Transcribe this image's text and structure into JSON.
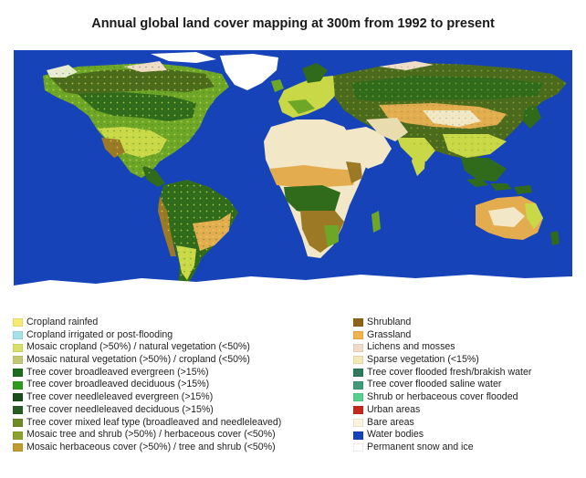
{
  "title": "Annual global land cover mapping at 300m from 1992 to present",
  "map": {
    "colors": {
      "ocean": "#1743b8",
      "ice": "#ffffff",
      "desert": "#f2e7c6",
      "grassland": "#e3ad4f",
      "shrubland": "#9c7a25",
      "evergreen": "#2f6b1b",
      "needleleaf": "#4b6a1c",
      "crop": "#c9d847",
      "mosaic": "#b4c23a",
      "deciduous": "#6ea627"
    }
  },
  "legend_left": [
    {
      "label": "Cropland rainfed",
      "color": "#f4ea74"
    },
    {
      "label": "Cropland irrigated or post-flooding",
      "color": "#a6e0ea"
    },
    {
      "label": "Mosaic cropland (>50%) / natural vegetation (<50%)",
      "color": "#d8e06b"
    },
    {
      "label": "Mosaic natural vegetation (>50%) / cropland (<50%)",
      "color": "#c4c874"
    },
    {
      "label": "Tree cover broadleaved evergreen (>15%)",
      "color": "#1c6b1c"
    },
    {
      "label": "Tree cover broadleaved deciduous (>15%)",
      "color": "#2f9a1e"
    },
    {
      "label": "Tree cover needleleaved evergreen (>15%)",
      "color": "#1d4d1d"
    },
    {
      "label": "Tree cover needleleaved deciduous (>15%)",
      "color": "#2a5d25"
    },
    {
      "label": "Tree cover mixed leaf type (broadleaved and needleleaved)",
      "color": "#6e8a26"
    },
    {
      "label": "Mosaic tree and shrub (>50%) / herbaceous cover (<50%)",
      "color": "#8ca22e"
    },
    {
      "label": "Mosaic herbaceous cover (>50%) / tree and shrub (<50%)",
      "color": "#c09c2f"
    }
  ],
  "legend_right": [
    {
      "label": "Shrubland",
      "color": "#8c6418"
    },
    {
      "label": "Grassland",
      "color": "#f2b24e"
    },
    {
      "label": "Lichens and mosses",
      "color": "#f1dcc9"
    },
    {
      "label": "Sparse vegetation (<15%)",
      "color": "#f4e8b6"
    },
    {
      "label": "Tree cover flooded fresh/brakish water",
      "color": "#2e7a5c"
    },
    {
      "label": "Tree cover flooded saline water",
      "color": "#3f9a78"
    },
    {
      "label": "Shrub or herbaceous cover flooded",
      "color": "#55d08e"
    },
    {
      "label": "Urban areas",
      "color": "#c4281c"
    },
    {
      "label": "Bare areas",
      "color": "#fbf3dd"
    },
    {
      "label": "Water bodies",
      "color": "#1743b8"
    },
    {
      "label": "Permanent snow and ice",
      "color": "#ffffff"
    }
  ]
}
